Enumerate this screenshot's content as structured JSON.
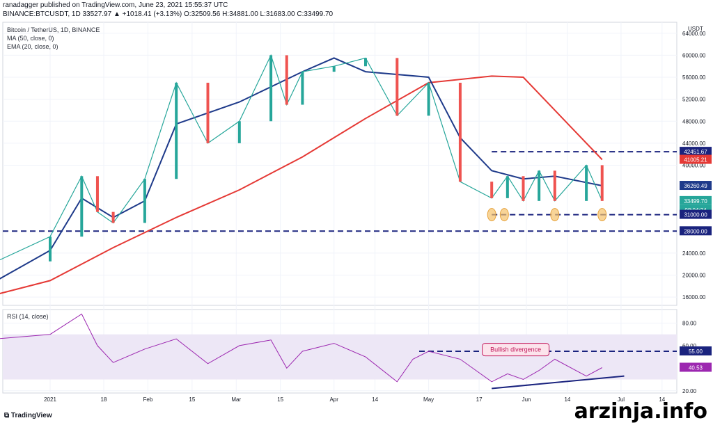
{
  "header": {
    "publish_line": "ranadagger published on TradingView.com, June 23, 2021 15:55:37 UTC",
    "symbol_line": "BINANCE:BTCUSDT, 1D  33527.97  ▲ +1018.41 (+3.13%)  O:32509.56  H:34881.00  L:31683.00  C:33499.70"
  },
  "legend": {
    "pair": "Bitcoin / TetherUS, 1D, BINANCE",
    "ma": "MA (50, close, 0)",
    "ema": "EMA (20, close, 0)",
    "rsi": "RSI (14, close)"
  },
  "footer": {
    "brand": "TradingView",
    "site": "arzinja.info"
  },
  "colors": {
    "up": "#26a69a",
    "down": "#ef5350",
    "ema": "#1e3a8a",
    "ma": "#e53935",
    "level": "#1a237e",
    "rsi": "#9c27b0",
    "rsi_band": "#ede7f6"
  },
  "chart_data": [
    {
      "type": "line",
      "title": "Bitcoin / TetherUS, 1D, BINANCE",
      "currency": "USDT",
      "y_ticks": [
        "64000.00",
        "60000.00",
        "56000.00",
        "52000.00",
        "48000.00",
        "44000.00",
        "40000.00",
        "24000.00",
        "20000.00",
        "16000.00"
      ],
      "x_ticks": [
        "2021",
        "18",
        "Feb",
        "15",
        "Mar",
        "15",
        "Apr",
        "14",
        "May",
        "17",
        "Jun",
        "14",
        "Jul",
        "14"
      ],
      "ylim": [
        14500,
        66000
      ],
      "series": [
        {
          "name": "MA",
          "x": [
            -17,
            0,
            20,
            40,
            60,
            80,
            100,
            120,
            140,
            150,
            165,
            175
          ],
          "values": [
            16500,
            19000,
            25000,
            30500,
            35500,
            41500,
            48500,
            55000,
            56200,
            56000,
            47000,
            41005
          ]
        },
        {
          "name": "EMA",
          "x": [
            -17,
            0,
            10,
            20,
            30,
            40,
            60,
            80,
            90,
            100,
            120,
            130,
            140,
            150,
            160,
            175
          ],
          "values": [
            19000,
            24500,
            34000,
            30500,
            33500,
            47500,
            51500,
            57000,
            59500,
            57000,
            56000,
            45000,
            39000,
            37500,
            38000,
            36260
          ]
        },
        {
          "name": "Price",
          "x": [
            -17,
            0,
            10,
            15,
            20,
            30,
            40,
            50,
            60,
            70,
            75,
            80,
            90,
            100,
            110,
            120,
            130,
            140,
            145,
            150,
            155,
            160,
            170,
            175
          ],
          "values": [
            22500,
            27000,
            38000,
            31500,
            29500,
            37500,
            55000,
            44000,
            48000,
            60000,
            51000,
            57000,
            58000,
            59500,
            49000,
            55000,
            37000,
            34000,
            38000,
            33500,
            39000,
            33500,
            40000,
            33500
          ]
        }
      ],
      "last_values": {
        "price": "33499.70",
        "countdown": "08:04:24",
        "ma": "41005.21",
        "ema": "36260.49"
      },
      "levels": [
        {
          "label": "42451.67",
          "value": 42451.67
        },
        {
          "label": "31000.00",
          "value": 31000
        },
        {
          "label": "28000.00",
          "value": 28000
        }
      ],
      "grid": true
    },
    {
      "type": "line",
      "title": "RSI (14, close)",
      "y_ticks": [
        "80.00",
        "60.00",
        "20.00"
      ],
      "ylim": [
        18,
        92
      ],
      "series": [
        {
          "name": "RSI",
          "x": [
            -17,
            0,
            10,
            15,
            20,
            30,
            40,
            50,
            60,
            70,
            75,
            80,
            90,
            100,
            110,
            115,
            120,
            130,
            140,
            145,
            150,
            155,
            160,
            170,
            175
          ],
          "values": [
            66,
            70,
            88,
            60,
            45,
            57,
            66,
            44,
            60,
            65,
            40,
            55,
            62,
            50,
            28,
            48,
            55,
            48,
            28,
            35,
            30,
            38,
            48,
            33,
            40.53
          ]
        }
      ],
      "last_value": "40.53",
      "levels": [
        {
          "label": "55.00",
          "value": 55
        }
      ],
      "band": [
        30,
        70
      ],
      "annotation": "Bullish divergence"
    }
  ]
}
